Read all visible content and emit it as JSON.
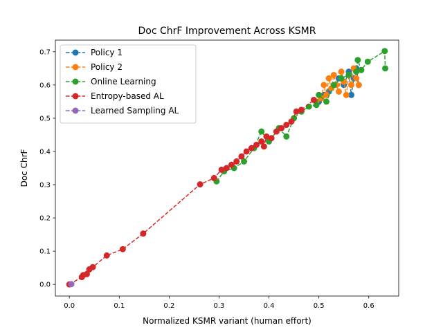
{
  "chart_data": {
    "type": "line",
    "title": "Doc ChrF Improvement Across KSMR",
    "xlabel": "Normalized KSMR variant (human effort)",
    "ylabel": "Doc ChrF",
    "xlim": [
      -0.028,
      0.66
    ],
    "ylim": [
      -0.035,
      0.735
    ],
    "xticks": [
      0.0,
      0.1,
      0.2,
      0.3,
      0.4,
      0.5,
      0.6
    ],
    "xtick_labels": [
      "0.0",
      "0.1",
      "0.2",
      "0.3",
      "0.4",
      "0.5",
      "0.6"
    ],
    "yticks": [
      0.0,
      0.1,
      0.2,
      0.3,
      0.4,
      0.5,
      0.6,
      0.7
    ],
    "ytick_labels": [
      "0.0",
      "0.1",
      "0.2",
      "0.3",
      "0.4",
      "0.5",
      "0.6",
      "0.7"
    ],
    "grid": false,
    "legend_position": "upper-left",
    "series": [
      {
        "name": "Policy 1",
        "color": "#1f77b4",
        "points": [
          [
            0.5,
            0.55
          ],
          [
            0.51,
            0.57
          ],
          [
            0.52,
            0.58
          ],
          [
            0.53,
            0.6
          ],
          [
            0.54,
            0.62
          ],
          [
            0.55,
            0.6
          ],
          [
            0.56,
            0.64
          ],
          [
            0.565,
            0.57
          ],
          [
            0.57,
            0.62
          ],
          [
            0.575,
            0.65
          ],
          [
            0.58,
            0.6
          ]
        ]
      },
      {
        "name": "Policy 2",
        "color": "#ff7f0e",
        "points": [
          [
            0.495,
            0.55
          ],
          [
            0.505,
            0.56
          ],
          [
            0.51,
            0.6
          ],
          [
            0.515,
            0.57
          ],
          [
            0.52,
            0.62
          ],
          [
            0.525,
            0.59
          ],
          [
            0.53,
            0.63
          ],
          [
            0.535,
            0.6
          ],
          [
            0.54,
            0.58
          ],
          [
            0.545,
            0.64
          ],
          [
            0.55,
            0.61
          ],
          [
            0.555,
            0.57
          ],
          [
            0.56,
            0.63
          ],
          [
            0.565,
            0.6
          ],
          [
            0.57,
            0.65
          ],
          [
            0.575,
            0.62
          ],
          [
            0.58,
            0.6
          ]
        ]
      },
      {
        "name": "Online Learning",
        "color": "#2ca02c",
        "points": [
          [
            0.295,
            0.31
          ],
          [
            0.31,
            0.34
          ],
          [
            0.33,
            0.35
          ],
          [
            0.35,
            0.37
          ],
          [
            0.37,
            0.41
          ],
          [
            0.385,
            0.46
          ],
          [
            0.4,
            0.43
          ],
          [
            0.42,
            0.47
          ],
          [
            0.435,
            0.445
          ],
          [
            0.45,
            0.5
          ],
          [
            0.465,
            0.52
          ],
          [
            0.48,
            0.535
          ],
          [
            0.495,
            0.54
          ],
          [
            0.5,
            0.57
          ],
          [
            0.515,
            0.55
          ],
          [
            0.53,
            0.6
          ],
          [
            0.545,
            0.62
          ],
          [
            0.56,
            0.63
          ],
          [
            0.575,
            0.64
          ],
          [
            0.578,
            0.675
          ],
          [
            0.585,
            0.645
          ],
          [
            0.598,
            0.67
          ],
          [
            0.632,
            0.702
          ],
          [
            0.633,
            0.65
          ]
        ]
      },
      {
        "name": "Entropy-based AL",
        "color": "#d62728",
        "points": [
          [
            0.0,
            0.0
          ],
          [
            0.025,
            0.022
          ],
          [
            0.028,
            0.028
          ],
          [
            0.035,
            0.031
          ],
          [
            0.04,
            0.045
          ],
          [
            0.047,
            0.052
          ],
          [
            0.075,
            0.087
          ],
          [
            0.107,
            0.106
          ],
          [
            0.148,
            0.153
          ],
          [
            0.262,
            0.301
          ],
          [
            0.29,
            0.32
          ],
          [
            0.305,
            0.345
          ],
          [
            0.315,
            0.35
          ],
          [
            0.325,
            0.36
          ],
          [
            0.335,
            0.37
          ],
          [
            0.345,
            0.385
          ],
          [
            0.355,
            0.4
          ],
          [
            0.365,
            0.41
          ],
          [
            0.375,
            0.42
          ],
          [
            0.385,
            0.43
          ],
          [
            0.39,
            0.415
          ],
          [
            0.395,
            0.445
          ],
          [
            0.405,
            0.44
          ],
          [
            0.415,
            0.46
          ],
          [
            0.425,
            0.47
          ],
          [
            0.435,
            0.48
          ],
          [
            0.445,
            0.49
          ],
          [
            0.455,
            0.52
          ],
          [
            0.465,
            0.525
          ],
          [
            0.49,
            0.555
          ]
        ]
      },
      {
        "name": "Learned Sampling AL",
        "color": "#9467bd",
        "points": [
          [
            0.004,
            0.001
          ]
        ]
      }
    ]
  }
}
